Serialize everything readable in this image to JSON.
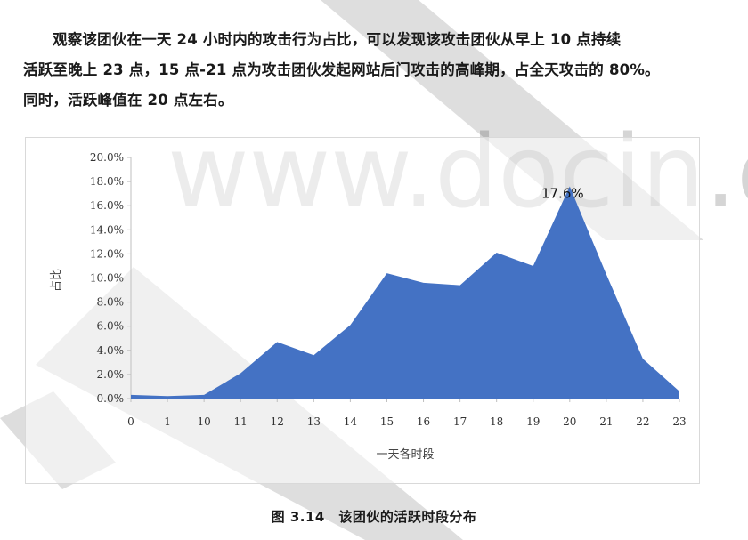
{
  "watermark": {
    "text": "www.docin.com"
  },
  "paragraph": {
    "line1": "观察该团伙在一天 24 小时内的攻击行为占比，可以发现该攻击团伙从早上 10 点持续",
    "line2": "活跃至晚上 23 点，15 点-21 点为攻击团伙发起网站后门攻击的高峰期，占全天攻击的 80%。",
    "line3": "同时，活跃峰值在 20 点左右。"
  },
  "chart_data": {
    "type": "area",
    "categories": [
      "0",
      "1",
      "10",
      "11",
      "12",
      "13",
      "14",
      "15",
      "16",
      "17",
      "18",
      "19",
      "20",
      "21",
      "22",
      "23"
    ],
    "values": [
      0.3,
      0.2,
      0.3,
      2.1,
      4.7,
      3.6,
      6.1,
      10.4,
      9.6,
      9.4,
      12.1,
      11.0,
      17.6,
      10.3,
      3.3,
      0.6
    ],
    "xlabel": "一天各时段",
    "ylabel": "占比",
    "ylim": [
      0,
      20
    ],
    "yticks": [
      "0.0%",
      "2.0%",
      "4.0%",
      "6.0%",
      "8.0%",
      "10.0%",
      "12.0%",
      "14.0%",
      "16.0%",
      "18.0%",
      "20.0%"
    ],
    "peak_label": "17.6%",
    "color": "#4472C4",
    "grid": false
  },
  "caption": "图 3.14　该团伙的活跃时段分布"
}
